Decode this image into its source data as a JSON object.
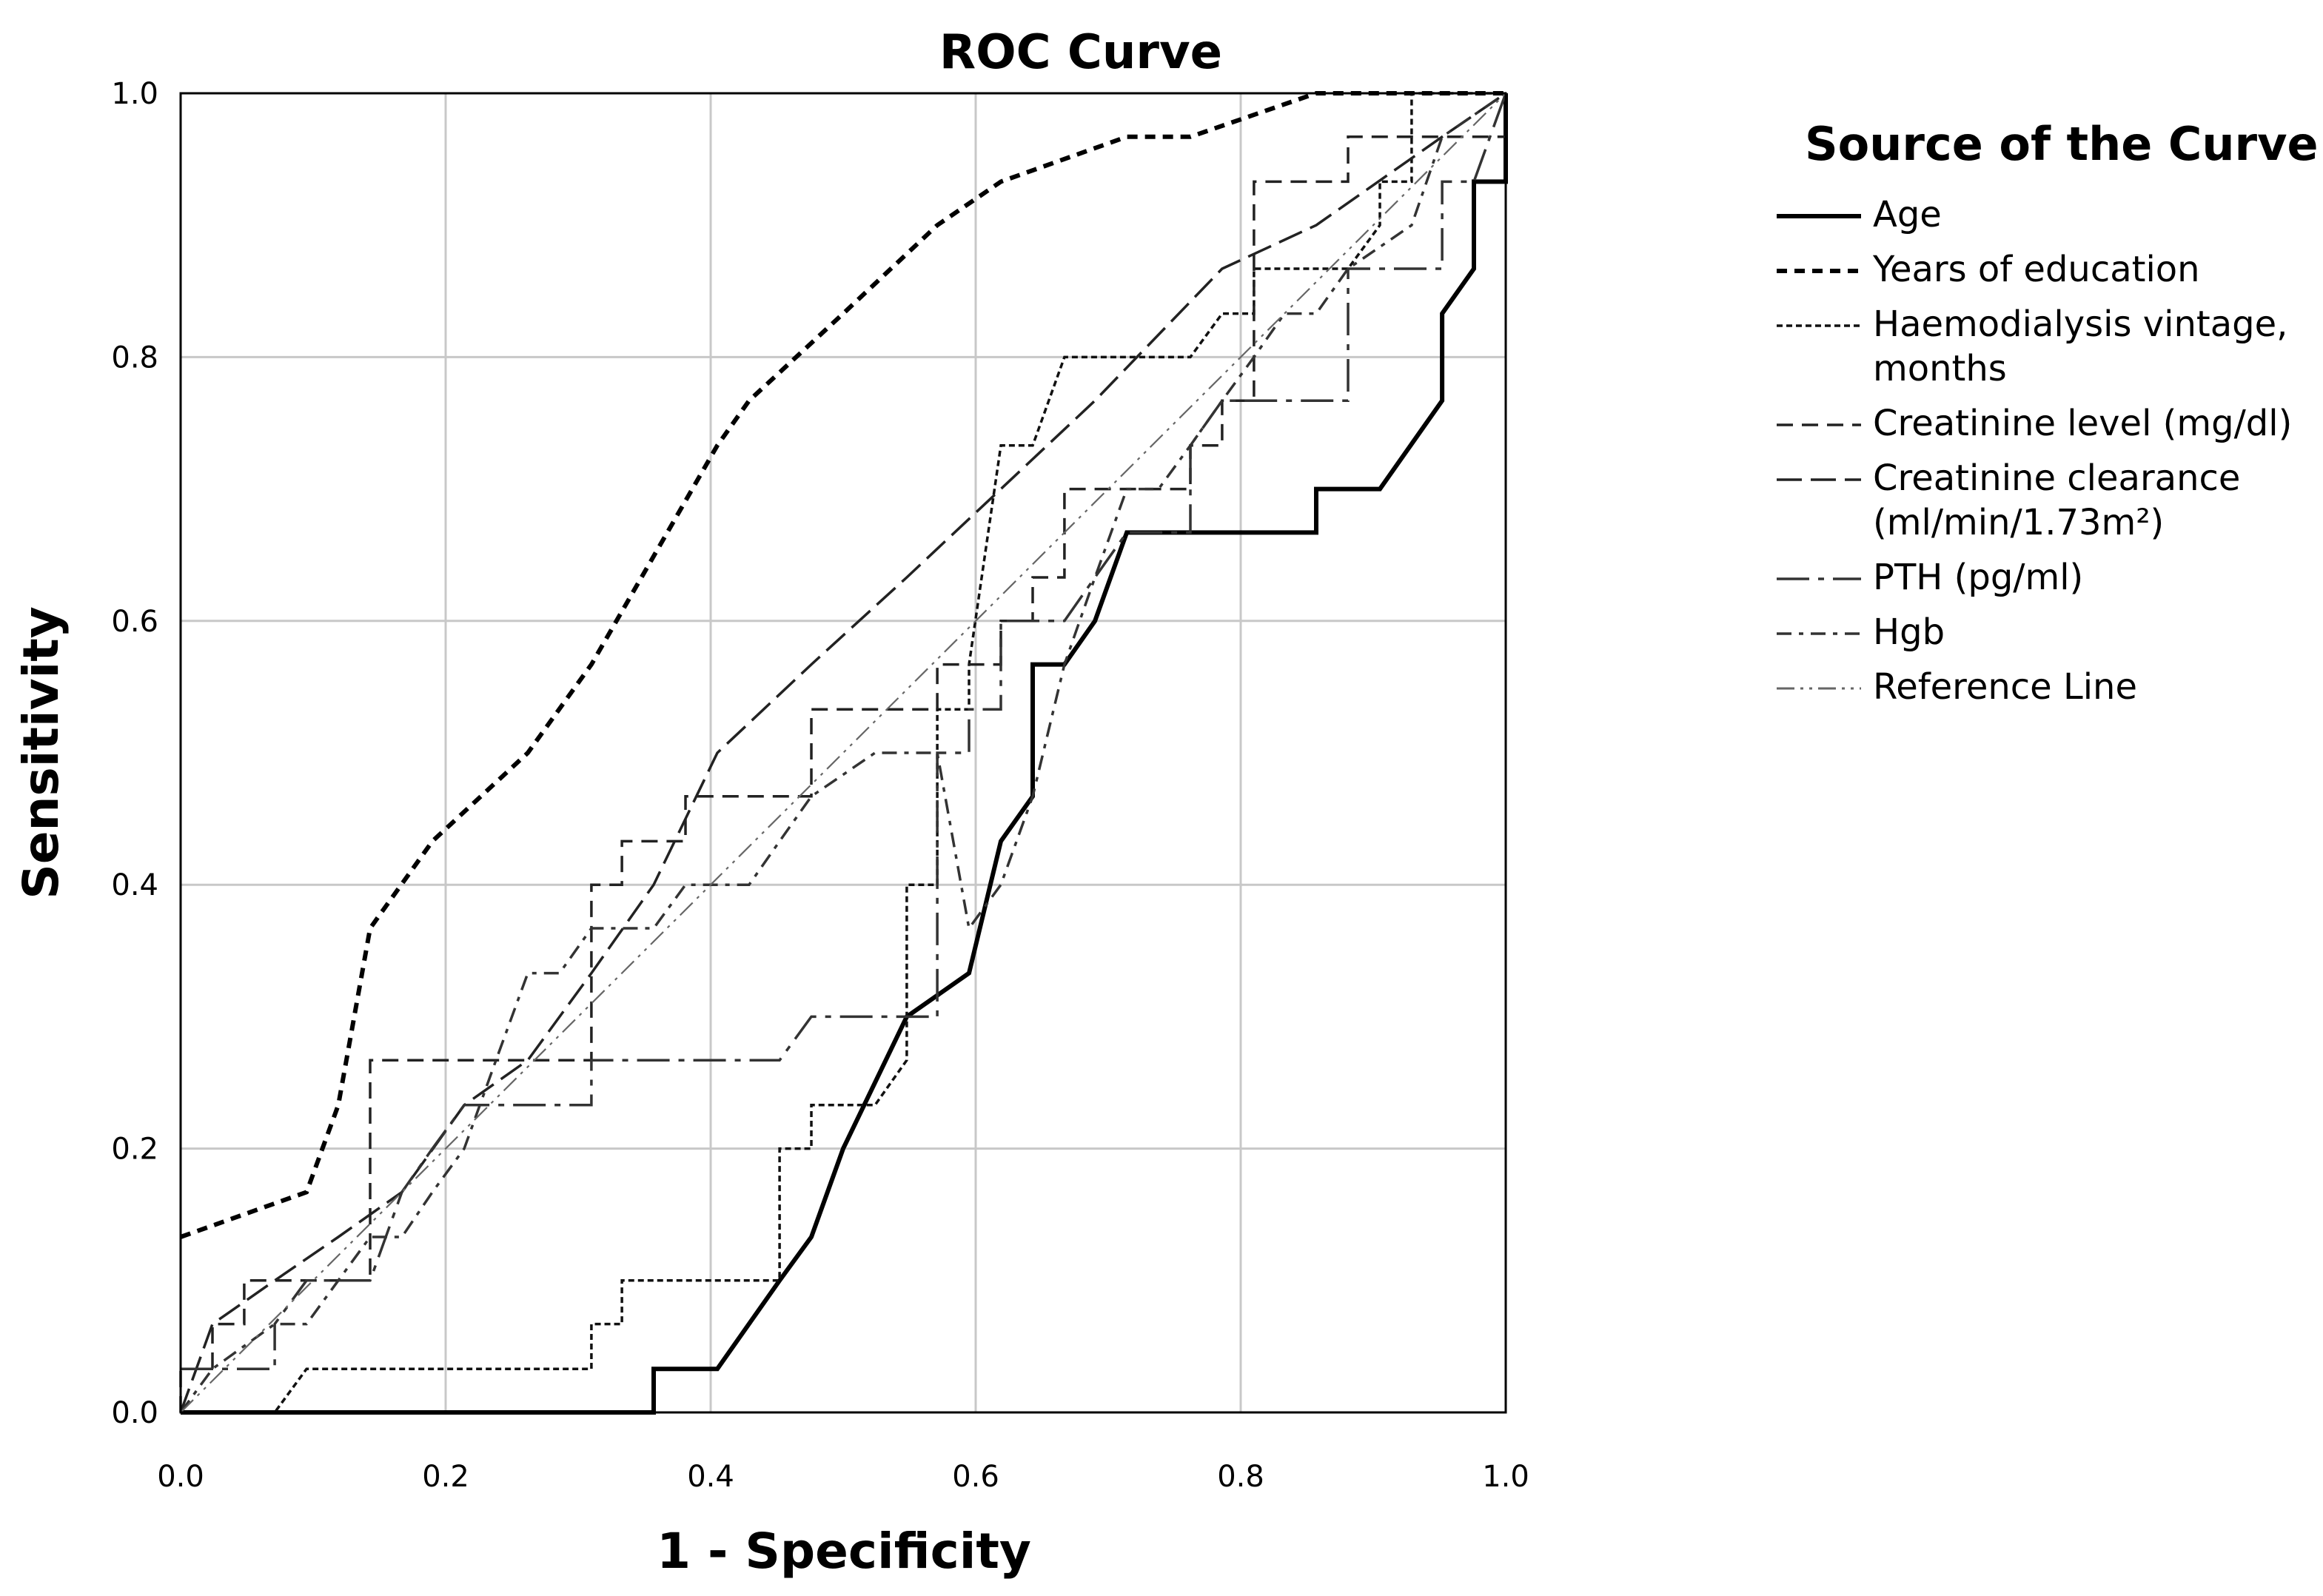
{
  "chart_data": {
    "type": "line",
    "title": "ROC Curve",
    "xlabel": "1 - Specificity",
    "ylabel": "Sensitivity",
    "xlim": [
      0,
      1
    ],
    "ylim": [
      0,
      1
    ],
    "xticks": [
      "0.0",
      "0.2",
      "0.4",
      "0.6",
      "0.8",
      "1.0"
    ],
    "yticks": [
      "0.0",
      "0.2",
      "0.4",
      "0.6",
      "0.8",
      "1.0"
    ],
    "grid": true,
    "legend": {
      "title": "Source of the Curve",
      "position": "right"
    },
    "series": [
      {
        "name": "Age",
        "legend_lines": [
          "Age"
        ],
        "style": "solid-bold",
        "points": [
          [
            0,
            0
          ],
          [
            0.357,
            0
          ],
          [
            0.357,
            0.033
          ],
          [
            0.405,
            0.033
          ],
          [
            0.452,
            0.1
          ],
          [
            0.476,
            0.133
          ],
          [
            0.5,
            0.2
          ],
          [
            0.548,
            0.3
          ],
          [
            0.595,
            0.333
          ],
          [
            0.619,
            0.433
          ],
          [
            0.643,
            0.467
          ],
          [
            0.643,
            0.567
          ],
          [
            0.667,
            0.567
          ],
          [
            0.69,
            0.6
          ],
          [
            0.714,
            0.667
          ],
          [
            0.857,
            0.667
          ],
          [
            0.857,
            0.7
          ],
          [
            0.905,
            0.7
          ],
          [
            0.952,
            0.767
          ],
          [
            0.952,
            0.833
          ],
          [
            0.976,
            0.867
          ],
          [
            0.976,
            0.933
          ],
          [
            1,
            0.933
          ],
          [
            1,
            1
          ]
        ]
      },
      {
        "name": "Years of education",
        "legend_lines": [
          "Years of education"
        ],
        "style": "short-dash-bold",
        "points": [
          [
            0,
            0.133
          ],
          [
            0.095,
            0.167
          ],
          [
            0.119,
            0.233
          ],
          [
            0.143,
            0.367
          ],
          [
            0.19,
            0.433
          ],
          [
            0.262,
            0.5
          ],
          [
            0.31,
            0.567
          ],
          [
            0.405,
            0.733
          ],
          [
            0.429,
            0.767
          ],
          [
            0.5,
            0.833
          ],
          [
            0.571,
            0.9
          ],
          [
            0.619,
            0.933
          ],
          [
            0.714,
            0.967
          ],
          [
            0.762,
            0.967
          ],
          [
            0.857,
            1
          ],
          [
            1,
            1
          ]
        ]
      },
      {
        "name": "Haemodialysis vintage, months",
        "legend_lines": [
          "Haemodialysis vintage,",
          "months"
        ],
        "style": "fine-dash",
        "points": [
          [
            0,
            0
          ],
          [
            0.071,
            0
          ],
          [
            0.095,
            0.033
          ],
          [
            0.31,
            0.033
          ],
          [
            0.31,
            0.067
          ],
          [
            0.333,
            0.067
          ],
          [
            0.333,
            0.1
          ],
          [
            0.452,
            0.1
          ],
          [
            0.452,
            0.2
          ],
          [
            0.476,
            0.2
          ],
          [
            0.476,
            0.233
          ],
          [
            0.524,
            0.233
          ],
          [
            0.548,
            0.267
          ],
          [
            0.548,
            0.4
          ],
          [
            0.571,
            0.4
          ],
          [
            0.571,
            0.533
          ],
          [
            0.595,
            0.533
          ],
          [
            0.595,
            0.567
          ],
          [
            0.619,
            0.733
          ],
          [
            0.643,
            0.733
          ],
          [
            0.667,
            0.8
          ],
          [
            0.762,
            0.8
          ],
          [
            0.786,
            0.833
          ],
          [
            0.81,
            0.833
          ],
          [
            0.81,
            0.867
          ],
          [
            0.881,
            0.867
          ],
          [
            0.905,
            0.9
          ],
          [
            0.905,
            0.933
          ],
          [
            0.929,
            0.933
          ],
          [
            0.929,
            1
          ],
          [
            1,
            1
          ]
        ]
      },
      {
        "name": "Creatinine level (mg/dl)",
        "legend_lines": [
          "Creatinine level (mg/dl)"
        ],
        "style": "medium-dash",
        "points": [
          [
            0,
            0
          ],
          [
            0,
            0.033
          ],
          [
            0.024,
            0.033
          ],
          [
            0.024,
            0.067
          ],
          [
            0.048,
            0.067
          ],
          [
            0.048,
            0.1
          ],
          [
            0.143,
            0.1
          ],
          [
            0.143,
            0.267
          ],
          [
            0.31,
            0.267
          ],
          [
            0.31,
            0.4
          ],
          [
            0.333,
            0.4
          ],
          [
            0.333,
            0.433
          ],
          [
            0.381,
            0.433
          ],
          [
            0.381,
            0.467
          ],
          [
            0.476,
            0.467
          ],
          [
            0.476,
            0.533
          ],
          [
            0.571,
            0.533
          ],
          [
            0.571,
            0.567
          ],
          [
            0.619,
            0.567
          ],
          [
            0.619,
            0.6
          ],
          [
            0.643,
            0.6
          ],
          [
            0.643,
            0.633
          ],
          [
            0.667,
            0.633
          ],
          [
            0.667,
            0.7
          ],
          [
            0.762,
            0.7
          ],
          [
            0.762,
            0.733
          ],
          [
            0.786,
            0.733
          ],
          [
            0.786,
            0.767
          ],
          [
            0.81,
            0.767
          ],
          [
            0.81,
            0.933
          ],
          [
            0.881,
            0.933
          ],
          [
            0.881,
            0.967
          ],
          [
            1,
            0.967
          ],
          [
            1,
            1
          ]
        ]
      },
      {
        "name": "Creatinine clearance (ml/min/1.73m²)",
        "legend_lines": [
          "Creatinine clearance",
          "(ml/min/1.73m²)"
        ],
        "style": "long-dash",
        "points": [
          [
            0,
            0
          ],
          [
            0.024,
            0.067
          ],
          [
            0.071,
            0.1
          ],
          [
            0.119,
            0.133
          ],
          [
            0.167,
            0.167
          ],
          [
            0.214,
            0.233
          ],
          [
            0.262,
            0.267
          ],
          [
            0.31,
            0.333
          ],
          [
            0.357,
            0.4
          ],
          [
            0.405,
            0.5
          ],
          [
            0.476,
            0.567
          ],
          [
            0.548,
            0.633
          ],
          [
            0.619,
            0.7
          ],
          [
            0.69,
            0.767
          ],
          [
            0.786,
            0.867
          ],
          [
            0.857,
            0.9
          ],
          [
            0.952,
            0.967
          ],
          [
            1,
            1
          ]
        ]
      },
      {
        "name": "PTH (pg/ml)",
        "legend_lines": [
          "PTH (pg/ml)"
        ],
        "style": "dash-dot-long",
        "points": [
          [
            0,
            0.033
          ],
          [
            0.071,
            0.033
          ],
          [
            0.071,
            0.067
          ],
          [
            0.095,
            0.1
          ],
          [
            0.143,
            0.1
          ],
          [
            0.167,
            0.167
          ],
          [
            0.19,
            0.2
          ],
          [
            0.214,
            0.233
          ],
          [
            0.31,
            0.233
          ],
          [
            0.31,
            0.267
          ],
          [
            0.429,
            0.267
          ],
          [
            0.452,
            0.267
          ],
          [
            0.476,
            0.3
          ],
          [
            0.524,
            0.3
          ],
          [
            0.571,
            0.3
          ],
          [
            0.571,
            0.5
          ],
          [
            0.595,
            0.5
          ],
          [
            0.595,
            0.533
          ],
          [
            0.619,
            0.533
          ],
          [
            0.619,
            0.6
          ],
          [
            0.667,
            0.6
          ],
          [
            0.69,
            0.633
          ],
          [
            0.714,
            0.667
          ],
          [
            0.762,
            0.667
          ],
          [
            0.762,
            0.733
          ],
          [
            0.786,
            0.767
          ],
          [
            0.857,
            0.767
          ],
          [
            0.881,
            0.767
          ],
          [
            0.881,
            0.867
          ],
          [
            0.952,
            0.867
          ],
          [
            0.952,
            0.933
          ],
          [
            0.976,
            0.933
          ],
          [
            1,
            1
          ]
        ]
      },
      {
        "name": "Hgb",
        "legend_lines": [
          "Hgb"
        ],
        "style": "dash-dot",
        "points": [
          [
            0,
            0
          ],
          [
            0.024,
            0.033
          ],
          [
            0.071,
            0.067
          ],
          [
            0.095,
            0.067
          ],
          [
            0.119,
            0.1
          ],
          [
            0.143,
            0.133
          ],
          [
            0.167,
            0.133
          ],
          [
            0.19,
            0.167
          ],
          [
            0.214,
            0.2
          ],
          [
            0.238,
            0.267
          ],
          [
            0.262,
            0.333
          ],
          [
            0.286,
            0.333
          ],
          [
            0.31,
            0.367
          ],
          [
            0.357,
            0.367
          ],
          [
            0.381,
            0.4
          ],
          [
            0.429,
            0.4
          ],
          [
            0.452,
            0.433
          ],
          [
            0.476,
            0.467
          ],
          [
            0.524,
            0.5
          ],
          [
            0.548,
            0.5
          ],
          [
            0.571,
            0.5
          ],
          [
            0.595,
            0.367
          ],
          [
            0.619,
            0.4
          ],
          [
            0.643,
            0.467
          ],
          [
            0.667,
            0.567
          ],
          [
            0.69,
            0.633
          ],
          [
            0.714,
            0.7
          ],
          [
            0.738,
            0.7
          ],
          [
            0.762,
            0.733
          ],
          [
            0.786,
            0.767
          ],
          [
            0.81,
            0.8
          ],
          [
            0.833,
            0.833
          ],
          [
            0.857,
            0.833
          ],
          [
            0.881,
            0.867
          ],
          [
            0.929,
            0.9
          ],
          [
            0.952,
            0.967
          ],
          [
            1,
            1
          ]
        ]
      },
      {
        "name": "Reference Line",
        "legend_lines": [
          "Reference Line"
        ],
        "style": "reference",
        "points": [
          [
            0,
            0
          ],
          [
            1,
            1
          ]
        ]
      }
    ]
  }
}
